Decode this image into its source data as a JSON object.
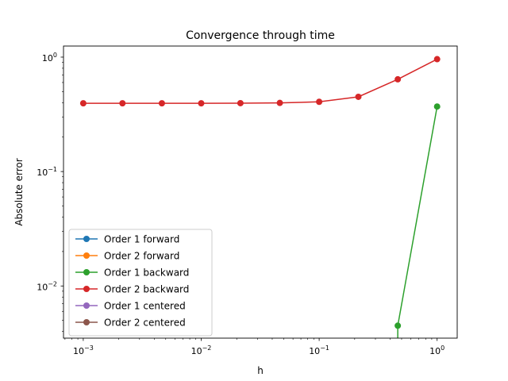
{
  "chart_data": {
    "type": "line",
    "title": "Convergence through time",
    "xlabel": "h",
    "ylabel": "Absolute error",
    "xscale": "log",
    "yscale": "log",
    "xlim": [
      0.00068,
      1.48
    ],
    "ylim": [
      0.0035,
      1.25
    ],
    "xticks": [
      {
        "value": 0.001,
        "base": "10",
        "exp": "−3"
      },
      {
        "value": 0.01,
        "base": "10",
        "exp": "−2"
      },
      {
        "value": 0.1,
        "base": "10",
        "exp": "−1"
      },
      {
        "value": 1,
        "base": "10",
        "exp": "0"
      }
    ],
    "yticks": [
      {
        "value": 0.01,
        "base": "10",
        "exp": "−2"
      },
      {
        "value": 0.1,
        "base": "10",
        "exp": "−1"
      },
      {
        "value": 1,
        "base": "10",
        "exp": "0"
      }
    ],
    "grid": false,
    "legend_position": "lower-left",
    "series": [
      {
        "name": "Order 1 forward",
        "color": "#1f77b4",
        "x": [],
        "y": []
      },
      {
        "name": "Order 2 forward",
        "color": "#ff7f0e",
        "x": [],
        "y": []
      },
      {
        "name": "Order 1 backward",
        "color": "#2ca02c",
        "x": [
          0.464,
          1.0
        ],
        "y": [
          0.0045,
          0.37
        ],
        "continues_below_axis_at": 0.464
      },
      {
        "name": "Order 2 backward",
        "color": "#d62728",
        "x": [
          0.001,
          0.00215,
          0.00464,
          0.01,
          0.0215,
          0.0464,
          0.1,
          0.215,
          0.464,
          1.0
        ],
        "y": [
          0.395,
          0.395,
          0.395,
          0.395,
          0.396,
          0.398,
          0.407,
          0.45,
          0.64,
          0.96
        ]
      },
      {
        "name": "Order 1 centered",
        "color": "#9467bd",
        "x": [],
        "y": []
      },
      {
        "name": "Order 2 centered",
        "color": "#8c564b",
        "x": [],
        "y": []
      }
    ]
  }
}
